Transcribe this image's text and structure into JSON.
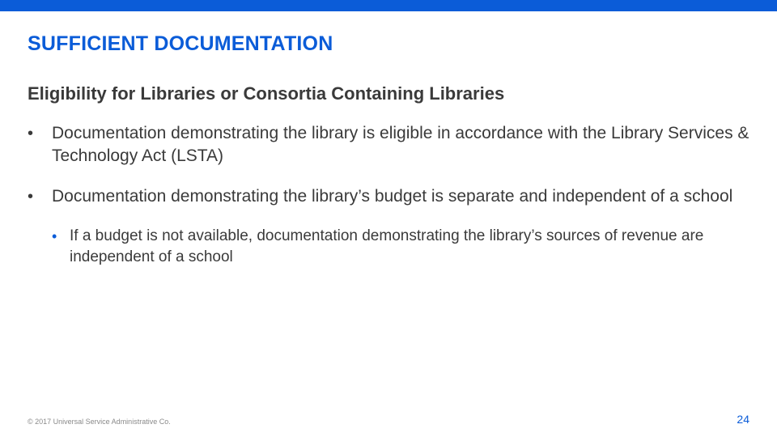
{
  "styling": {
    "slide_width": 960,
    "slide_height": 540,
    "top_bar_height": 14,
    "accent_color": "#0b5cd8",
    "text_color": "#3a3a3a",
    "muted_color": "#8a8a8a",
    "background_color": "#ffffff",
    "title_fontsize": 25,
    "subtitle_fontsize": 22,
    "body_fontsize": 21,
    "sub_fontsize": 19,
    "footer_fontsize": 9,
    "pagenum_fontsize": 14,
    "font_family": "Arial"
  },
  "title": "SUFFICIENT DOCUMENTATION",
  "subtitle": "Eligibility for Libraries or Consortia Containing Libraries",
  "bullets": [
    {
      "text": "Documentation demonstrating the library is eligible in accordance with the Library Services & Technology Act (LSTA)"
    },
    {
      "text": "Documentation demonstrating the library’s budget is separate and independent of a school",
      "sub": [
        "If a budget is not available, documentation demonstrating the library’s sources of revenue are independent of a school"
      ]
    }
  ],
  "footer": {
    "copyright": "© 2017 Universal Service Administrative Co.",
    "page_number": "24"
  }
}
